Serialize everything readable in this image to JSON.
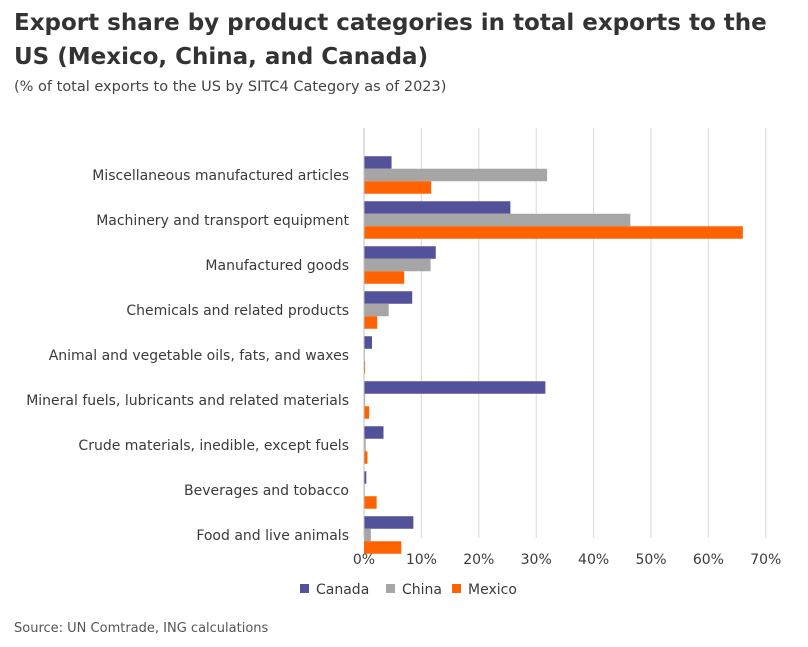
{
  "chart_data": {
    "type": "bar",
    "orientation": "horizontal",
    "title": "Export share by product categories in total exports to the US (Mexico, China, and Canada)",
    "subtitle": "(% of total exports to the US by SITC4 Category as of 2023)",
    "source": "Source: UN Comtrade, ING calculations",
    "categories": [
      "Miscellaneous manufactured articles",
      "Machinery and transport equipment",
      "Manufactured goods",
      "Chemicals and related products",
      "Animal and vegetable oils, fats, and waxes",
      "Mineral fuels, lubricants and related materials",
      "Crude materials, inedible, except fuels",
      "Beverages and tobacco",
      "Food and live animals"
    ],
    "series": [
      {
        "name": "Canada",
        "color": "#525199",
        "values": [
          4.8,
          25.5,
          12.5,
          8.4,
          1.4,
          31.6,
          3.4,
          0.4,
          8.6
        ]
      },
      {
        "name": "China",
        "color": "#a6a6a6",
        "values": [
          31.9,
          46.4,
          11.6,
          4.3,
          0.1,
          0.2,
          0.3,
          0.1,
          1.2
        ]
      },
      {
        "name": "Mexico",
        "color": "#ff6200",
        "values": [
          11.7,
          66.0,
          7.0,
          2.3,
          0.2,
          0.9,
          0.6,
          2.2,
          6.5
        ]
      }
    ],
    "xlim": [
      0,
      70
    ],
    "xticks": [
      0,
      10,
      20,
      30,
      40,
      50,
      60,
      70
    ],
    "xtick_labels": [
      "0%",
      "10%",
      "20%",
      "30%",
      "40%",
      "50%",
      "60%",
      "70%"
    ],
    "grid": "vertical",
    "legend_position": "bottom"
  }
}
